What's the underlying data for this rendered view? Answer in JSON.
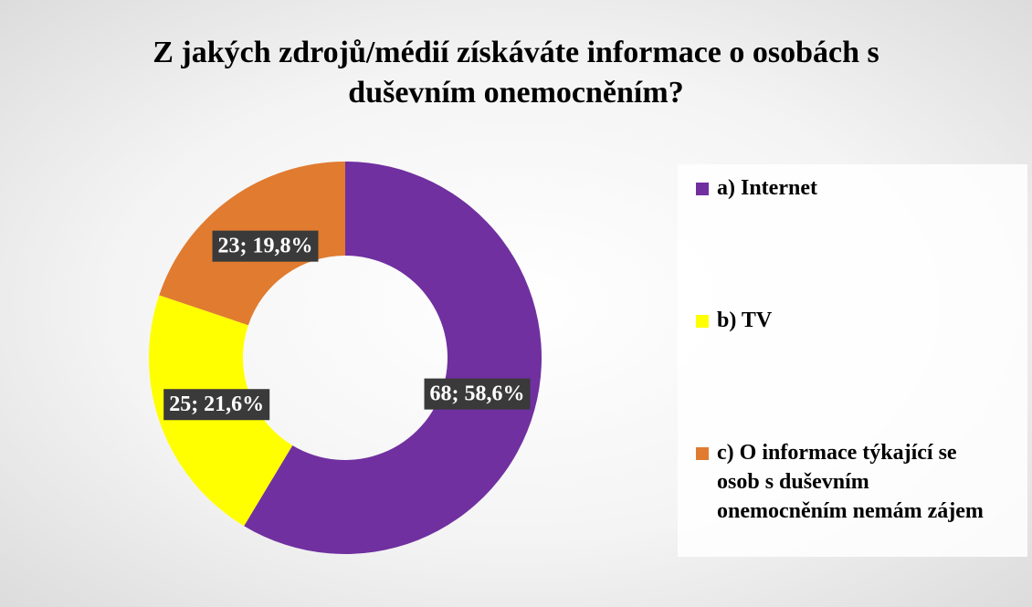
{
  "chart_data": {
    "type": "donut",
    "title": "Z jakých zdrojů/médií získáváte informace o osobách s duševním onemocněním?",
    "categories": [
      "a) Internet",
      "b) TV",
      "c) O informace týkající se osob s duševním onemocněním nemám zájem"
    ],
    "values": [
      68,
      25,
      23
    ],
    "value_labels": [
      "68; 58,6%",
      "25; 21,6%",
      "23; 19,8%"
    ],
    "colors": [
      "#7030a0",
      "#ffff00",
      "#e07b30"
    ],
    "legend": "right"
  }
}
